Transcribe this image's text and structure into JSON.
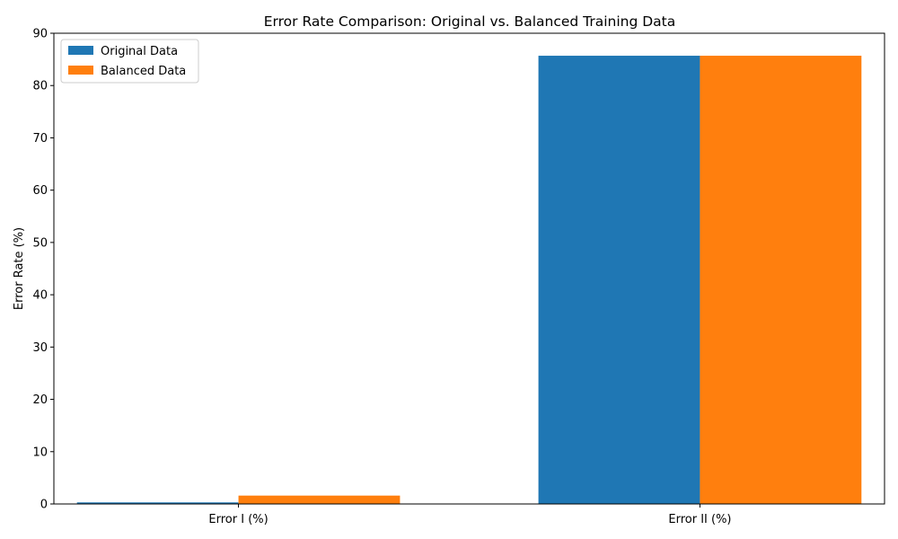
{
  "chart_data": {
    "type": "bar",
    "title": "Error Rate Comparison: Original vs. Balanced Training Data",
    "xlabel": "",
    "ylabel": "Error Rate (%)",
    "categories": [
      "Error I (%)",
      "Error II (%)"
    ],
    "series": [
      {
        "name": "Original Data",
        "values": [
          0.3,
          85.7
        ],
        "color": "#1f77b4"
      },
      {
        "name": "Balanced Data",
        "values": [
          1.6,
          85.7
        ],
        "color": "#ff7f0e"
      }
    ],
    "ylim": [
      0,
      90
    ],
    "yticks": [
      0,
      10,
      20,
      30,
      40,
      50,
      60,
      70,
      80,
      90
    ],
    "grid": false,
    "legend_position": "top-left"
  }
}
